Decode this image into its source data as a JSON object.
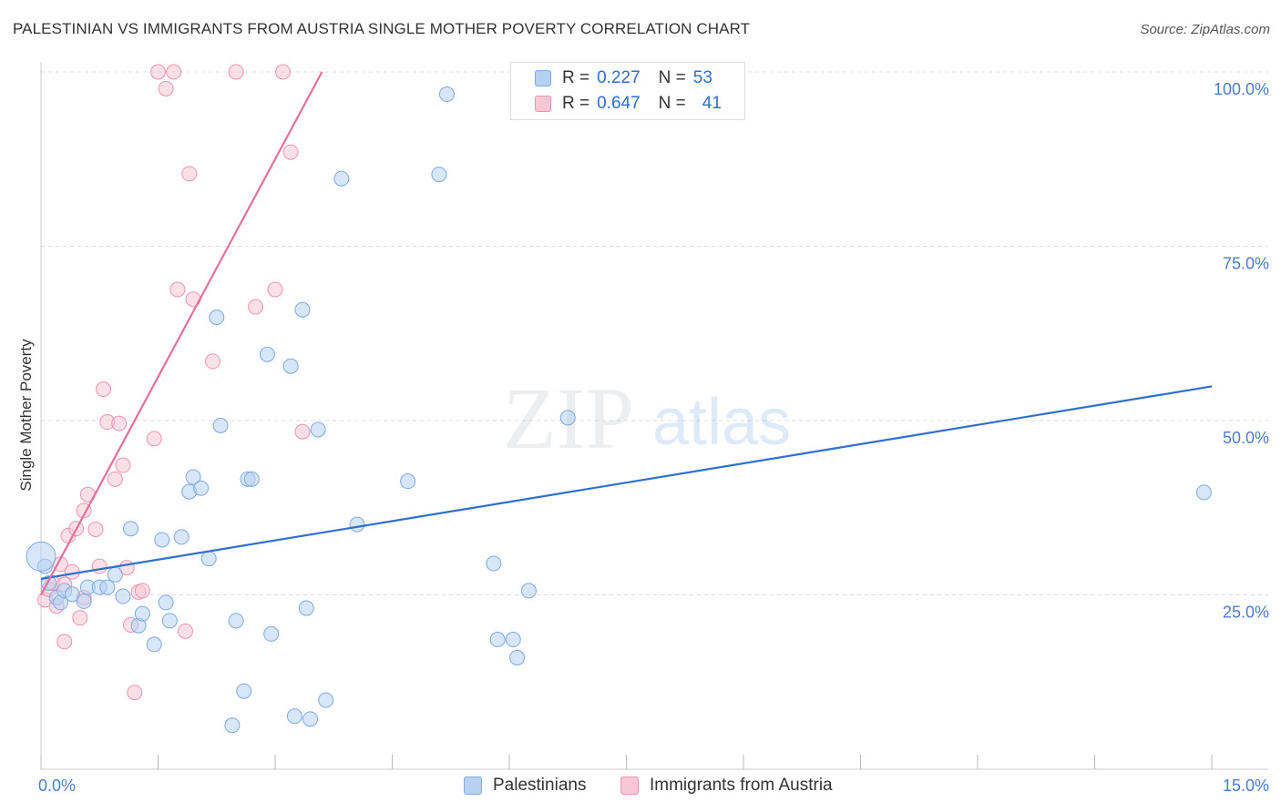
{
  "header": {
    "title": "PALESTINIAN VS IMMIGRANTS FROM AUSTRIA SINGLE MOTHER POVERTY CORRELATION CHART",
    "source": "Source: ZipAtlas.com"
  },
  "watermark": {
    "zip": "ZIP",
    "atlas": "atlas"
  },
  "colors": {
    "blue_fill": "#b7d1f3",
    "blue_stroke": "#7ea9e1",
    "blue_line": "#2f6fcf",
    "pink_fill": "#f9c6d6",
    "pink_stroke": "#ee94b1",
    "pink_line": "#e4709b",
    "axis_text": "#4a7ccf",
    "grid": "#dddddd"
  },
  "legend": {
    "rows": [
      {
        "r_label": "R =",
        "r_value": "0.227",
        "n_label": "N =",
        "n_value": "53"
      },
      {
        "r_label": "R =",
        "r_value": "0.647",
        "n_label": "N =",
        "n_value": "41"
      }
    ]
  },
  "chart_data": {
    "type": "scatter",
    "title": "PALESTINIAN VS IMMIGRANTS FROM AUSTRIA SINGLE MOTHER POVERTY CORRELATION CHART",
    "xlabel": "",
    "ylabel": "Single Mother Poverty",
    "xlim": [
      0,
      15
    ],
    "ylim": [
      0,
      100
    ],
    "x_tick_labels": [
      "0.0%",
      "15.0%"
    ],
    "y_tick_labels": [
      "25.0%",
      "50.0%",
      "75.0%",
      "100.0%"
    ],
    "y_ticks": [
      25,
      50,
      75,
      100
    ],
    "grid": true,
    "series": [
      {
        "name": "Palestinians",
        "color": "blue",
        "r": 0.227,
        "n": 53,
        "trend": {
          "x": [
            0,
            15
          ],
          "y": [
            27.3,
            54.9
          ]
        },
        "points": [
          [
            0.05,
            29.1
          ],
          [
            0.1,
            26.7
          ],
          [
            0.2,
            24.6
          ],
          [
            0.25,
            23.9
          ],
          [
            0.3,
            25.6
          ],
          [
            0.4,
            25.1
          ],
          [
            0.55,
            24.1
          ],
          [
            0.6,
            26.1
          ],
          [
            0.75,
            26.1
          ],
          [
            0.85,
            26.1
          ],
          [
            0.95,
            27.9
          ],
          [
            1.05,
            24.8
          ],
          [
            1.15,
            34.5
          ],
          [
            1.25,
            20.6
          ],
          [
            1.3,
            22.3
          ],
          [
            1.45,
            17.9
          ],
          [
            1.55,
            32.9
          ],
          [
            1.6,
            23.9
          ],
          [
            1.65,
            21.3
          ],
          [
            1.8,
            33.3
          ],
          [
            1.9,
            39.8
          ],
          [
            1.95,
            41.9
          ],
          [
            2.05,
            40.3
          ],
          [
            2.15,
            30.2
          ],
          [
            2.25,
            64.8
          ],
          [
            2.3,
            49.3
          ],
          [
            2.45,
            6.3
          ],
          [
            2.5,
            21.3
          ],
          [
            2.6,
            11.2
          ],
          [
            2.65,
            41.6
          ],
          [
            2.7,
            41.6
          ],
          [
            2.9,
            59.5
          ],
          [
            2.95,
            19.4
          ],
          [
            3.2,
            57.8
          ],
          [
            3.25,
            7.6
          ],
          [
            3.35,
            65.9
          ],
          [
            3.4,
            23.1
          ],
          [
            3.45,
            7.2
          ],
          [
            3.55,
            48.7
          ],
          [
            3.65,
            9.9
          ],
          [
            3.85,
            84.7
          ],
          [
            4.05,
            35.1
          ],
          [
            4.7,
            41.3
          ],
          [
            5.1,
            85.3
          ],
          [
            5.2,
            96.8
          ],
          [
            5.8,
            29.5
          ],
          [
            5.85,
            18.6
          ],
          [
            6.05,
            18.6
          ],
          [
            6.1,
            16.0
          ],
          [
            6.25,
            25.6
          ],
          [
            6.75,
            50.4
          ],
          [
            14.9,
            39.7
          ],
          [
            0.0,
            30.5
          ]
        ]
      },
      {
        "name": "Immigrants from Austria",
        "color": "pink",
        "r": 0.647,
        "n": 41,
        "trend": {
          "x": [
            0,
            3.6
          ],
          "y": [
            25.0,
            100.0
          ]
        },
        "points": [
          [
            0.05,
            24.3
          ],
          [
            0.1,
            25.8
          ],
          [
            0.15,
            26.7
          ],
          [
            0.2,
            23.4
          ],
          [
            0.25,
            29.4
          ],
          [
            0.3,
            26.5
          ],
          [
            0.3,
            18.3
          ],
          [
            0.35,
            33.5
          ],
          [
            0.4,
            28.3
          ],
          [
            0.45,
            34.5
          ],
          [
            0.5,
            21.7
          ],
          [
            0.55,
            24.6
          ],
          [
            0.55,
            37.1
          ],
          [
            0.6,
            39.4
          ],
          [
            0.7,
            34.4
          ],
          [
            0.75,
            29.1
          ],
          [
            0.8,
            54.5
          ],
          [
            0.85,
            49.8
          ],
          [
            0.95,
            41.6
          ],
          [
            1.0,
            49.6
          ],
          [
            1.05,
            43.6
          ],
          [
            1.1,
            28.9
          ],
          [
            1.15,
            20.7
          ],
          [
            1.2,
            11.0
          ],
          [
            1.25,
            25.4
          ],
          [
            1.3,
            25.6
          ],
          [
            1.45,
            47.4
          ],
          [
            1.5,
            100.0
          ],
          [
            1.6,
            97.6
          ],
          [
            1.7,
            100.0
          ],
          [
            1.75,
            68.8
          ],
          [
            1.85,
            19.8
          ],
          [
            1.9,
            85.4
          ],
          [
            1.95,
            67.4
          ],
          [
            2.2,
            58.5
          ],
          [
            2.5,
            100.0
          ],
          [
            2.75,
            66.3
          ],
          [
            3.0,
            68.8
          ],
          [
            3.1,
            100.0
          ],
          [
            3.2,
            88.5
          ],
          [
            3.35,
            48.4
          ]
        ]
      }
    ]
  },
  "bottom_legend": {
    "items": [
      "Palestinians",
      "Immigrants from Austria"
    ]
  }
}
